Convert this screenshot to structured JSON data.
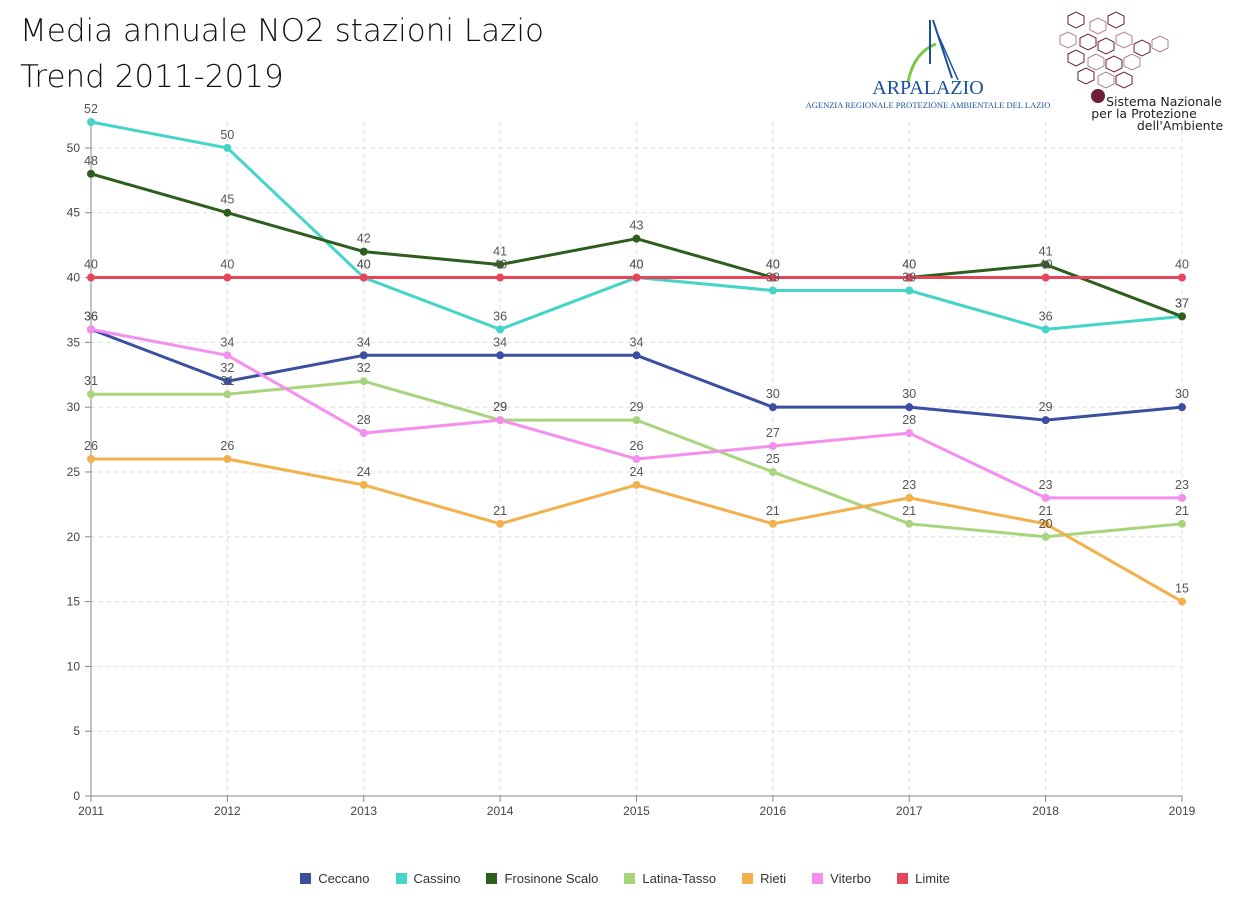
{
  "title_line1": "Media annuale NO2 stazioni Lazio",
  "title_line2": "Trend 2011-2019",
  "logos": {
    "arpa_name": "ARPALAZIO",
    "arpa_sub": "AGENZIA REGIONALE PROTEZIONE AMBIENTALE DEL LAZIO",
    "snpa_line1": "Sistema Nazionale",
    "snpa_line2": "per la Protezione",
    "snpa_line3": "dell'Ambiente",
    "arpa_color": "#1a4f9c",
    "arpa_accent": "#7ac943",
    "snpa_color": "#7a1f3d"
  },
  "chart_data": {
    "type": "line",
    "title": "",
    "xlabel": "",
    "ylabel": "",
    "x": [
      2011,
      2012,
      2013,
      2014,
      2015,
      2016,
      2017,
      2018,
      2019
    ],
    "ylim": [
      0,
      52
    ],
    "yticks": [
      0,
      5,
      10,
      15,
      20,
      25,
      30,
      35,
      40,
      45,
      50
    ],
    "grid": true,
    "legend_position": "bottom",
    "series": [
      {
        "name": "Ceccano",
        "color": "#3a4fa0",
        "values": [
          36,
          32,
          34,
          34,
          34,
          30,
          30,
          29,
          30
        ]
      },
      {
        "name": "Cassino",
        "color": "#44d4c8",
        "values": [
          52,
          50,
          40,
          36,
          40,
          39,
          39,
          36,
          37
        ]
      },
      {
        "name": "Frosinone Scalo",
        "color": "#2e5e1e",
        "values": [
          48,
          45,
          42,
          41,
          43,
          40,
          40,
          41,
          37
        ]
      },
      {
        "name": "Latina-Tasso",
        "color": "#a8d47e",
        "values": [
          31,
          31,
          32,
          29,
          29,
          25,
          21,
          20,
          21
        ]
      },
      {
        "name": "Rieti",
        "color": "#f3b04c",
        "values": [
          26,
          26,
          24,
          21,
          24,
          21,
          23,
          21,
          15
        ]
      },
      {
        "name": "Viterbo",
        "color": "#f48ff0",
        "values": [
          36,
          34,
          28,
          29,
          26,
          27,
          28,
          23,
          23
        ]
      },
      {
        "name": "Limite",
        "color": "#e8445a",
        "values": [
          40,
          40,
          40,
          40,
          40,
          40,
          40,
          40,
          40
        ]
      }
    ]
  }
}
